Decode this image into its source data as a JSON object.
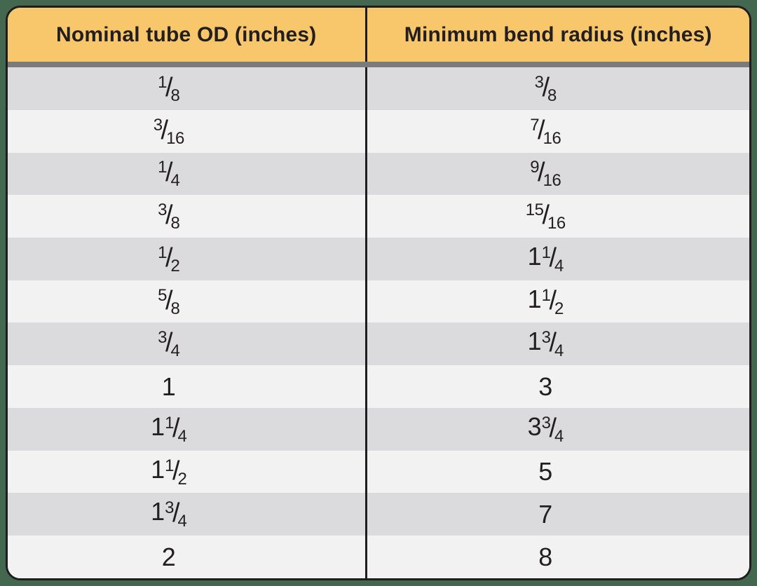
{
  "colors": {
    "background_green": "#44674F",
    "header_orange": "#F8C76B",
    "row_dark": "#DBDBDD",
    "row_light": "#F2F2F3",
    "border_black": "#1E1E1E",
    "band_gray": "#7B7B7B",
    "text_ink": "#231F20"
  },
  "table": {
    "columns": [
      "Nominal tube OD (inches)",
      "Minimum bend radius (inches)"
    ],
    "rows": [
      {
        "od": "1/8",
        "radius": "3/8"
      },
      {
        "od": "3/16",
        "radius": "7/16"
      },
      {
        "od": "1/4",
        "radius": "9/16"
      },
      {
        "od": "3/8",
        "radius": "15/16"
      },
      {
        "od": "1/2",
        "radius": "1 1/4"
      },
      {
        "od": "5/8",
        "radius": "1 1/2"
      },
      {
        "od": "3/4",
        "radius": "1 3/4"
      },
      {
        "od": "1",
        "radius": "3"
      },
      {
        "od": "1 1/4",
        "radius": "3 3/4"
      },
      {
        "od": "1 1/2",
        "radius": "5"
      },
      {
        "od": "1 3/4",
        "radius": "7"
      },
      {
        "od": "2",
        "radius": "8"
      }
    ]
  },
  "chart_data": {
    "type": "table",
    "title": "",
    "columns": [
      "Nominal tube OD (inches)",
      "Minimum bend radius (inches)"
    ],
    "rows": [
      [
        "1/8",
        "3/8"
      ],
      [
        "3/16",
        "7/16"
      ],
      [
        "1/4",
        "9/16"
      ],
      [
        "3/8",
        "15/16"
      ],
      [
        "1/2",
        "1 1/4"
      ],
      [
        "5/8",
        "1 1/2"
      ],
      [
        "3/4",
        "1 3/4"
      ],
      [
        "1",
        "3"
      ],
      [
        "1 1/4",
        "3 3/4"
      ],
      [
        "1 1/2",
        "5"
      ],
      [
        "1 3/4",
        "7"
      ],
      [
        "2",
        "8"
      ]
    ]
  }
}
